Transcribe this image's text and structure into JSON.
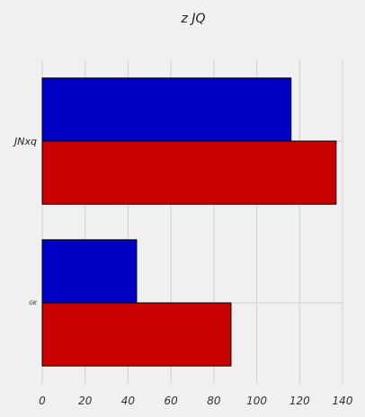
{
  "chart_data": {
    "type": "bar",
    "orientation": "horizontal",
    "title": "z JQ",
    "categories": [
      "JNxq",
      "GK"
    ],
    "series": [
      {
        "color": "#0000c4",
        "values": [
          116,
          44
        ]
      },
      {
        "color": "#c80000",
        "values": [
          137,
          88
        ]
      }
    ],
    "xlim": [
      0,
      140
    ],
    "xticks": [
      0,
      20,
      40,
      60,
      80,
      100,
      120,
      140
    ],
    "xlabel": "",
    "ylabel": "",
    "grid": true,
    "legend": "none"
  }
}
